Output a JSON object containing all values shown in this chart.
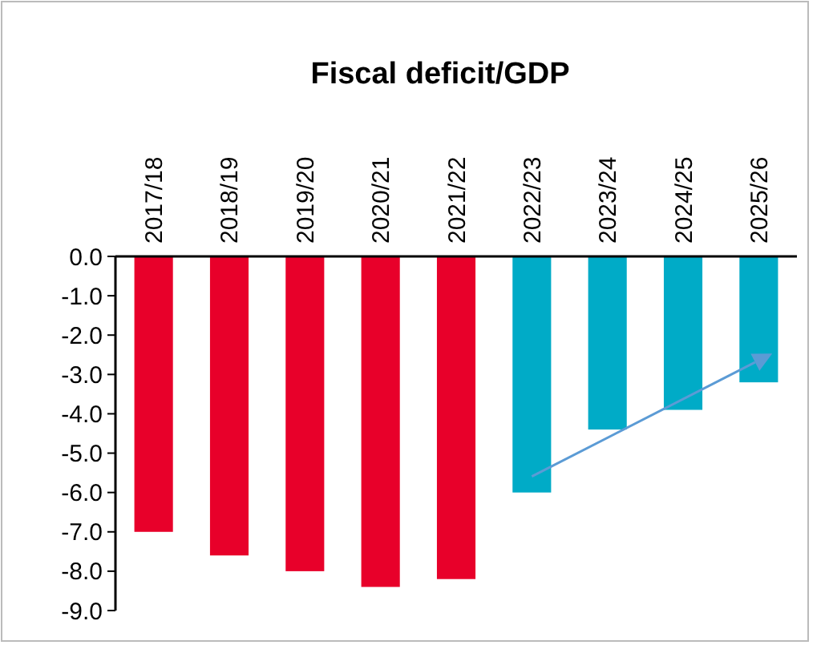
{
  "chart_data": {
    "type": "bar",
    "title": "Fiscal deficit/GDP",
    "categories": [
      "2017/18",
      "2018/19",
      "2019/20",
      "2020/21",
      "2021/22",
      "2022/23",
      "2023/24",
      "2024/25",
      "2025/26"
    ],
    "values": [
      -7.0,
      -7.6,
      -8.0,
      -8.4,
      -8.2,
      -6.0,
      -4.4,
      -3.9,
      -3.2
    ],
    "colors": [
      "#e8002a",
      "#e8002a",
      "#e8002a",
      "#e8002a",
      "#e8002a",
      "#00abc7",
      "#00abc7",
      "#00abc7",
      "#00abc7"
    ],
    "ylim": [
      -9,
      0
    ],
    "yticks": [
      {
        "value": 0,
        "label": "0.0"
      },
      {
        "value": -1,
        "label": "-1.0"
      },
      {
        "value": -2,
        "label": "-2.0"
      },
      {
        "value": -3,
        "label": "-3.0"
      },
      {
        "value": -4,
        "label": "-4.0"
      },
      {
        "value": -5,
        "label": "-5.0"
      },
      {
        "value": -6,
        "label": "-6.0"
      },
      {
        "value": -7,
        "label": "-7.0"
      },
      {
        "value": -8,
        "label": "-8.0"
      },
      {
        "value": -9,
        "label": "-9.0"
      }
    ],
    "grid": false
  }
}
